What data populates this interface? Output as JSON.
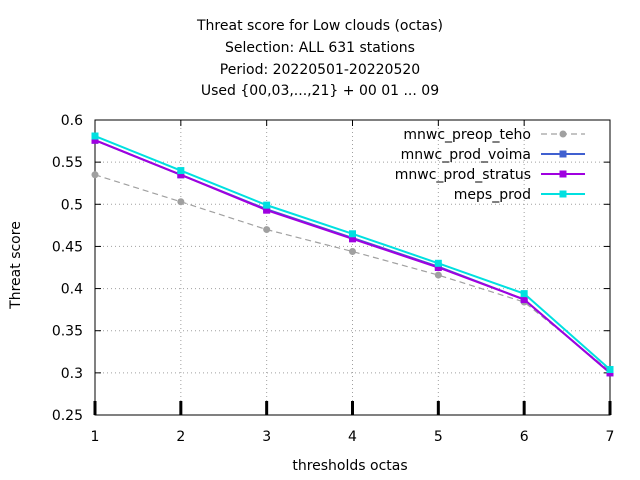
{
  "chart_data": {
    "type": "line",
    "title_lines": [
      "Threat score  for Low clouds (octas)",
      "Selection: ALL    631 stations",
      "Period: 20220501-20220520",
      "Used {00,03,...,21} + 00 01 ... 09"
    ],
    "xlabel": "thresholds octas",
    "ylabel": "Threat score",
    "x": [
      1,
      2,
      3,
      4,
      5,
      6,
      7
    ],
    "x_ticks": [
      "1",
      "2",
      "3",
      "4",
      "5",
      "6",
      "7"
    ],
    "y_ticks": [
      "0.25",
      "0.3",
      "0.35",
      "0.4",
      "0.45",
      "0.5",
      "0.55",
      "0.6"
    ],
    "xlim": [
      1,
      7
    ],
    "ylim": [
      0.25,
      0.6
    ],
    "grid": true,
    "legend_position": "top-right",
    "series": [
      {
        "name": "mnwc_preop_teho",
        "color": "#a0a0a0",
        "dashed": true,
        "marker": "circle",
        "values": [
          0.535,
          0.503,
          0.47,
          0.444,
          0.416,
          0.384,
          0.302
        ]
      },
      {
        "name": "mnwc_prod_voima",
        "color": "#4060d0",
        "dashed": false,
        "marker": "square",
        "values": [
          0.576,
          0.535,
          0.494,
          0.46,
          0.426,
          0.387,
          0.3
        ]
      },
      {
        "name": "mnwc_prod_stratus",
        "color": "#a000e0",
        "dashed": false,
        "marker": "square",
        "values": [
          0.576,
          0.535,
          0.493,
          0.459,
          0.425,
          0.387,
          0.3
        ]
      },
      {
        "name": "meps_prod",
        "color": "#00e0e0",
        "dashed": false,
        "marker": "square",
        "values": [
          0.581,
          0.54,
          0.499,
          0.465,
          0.43,
          0.394,
          0.304
        ]
      }
    ]
  }
}
